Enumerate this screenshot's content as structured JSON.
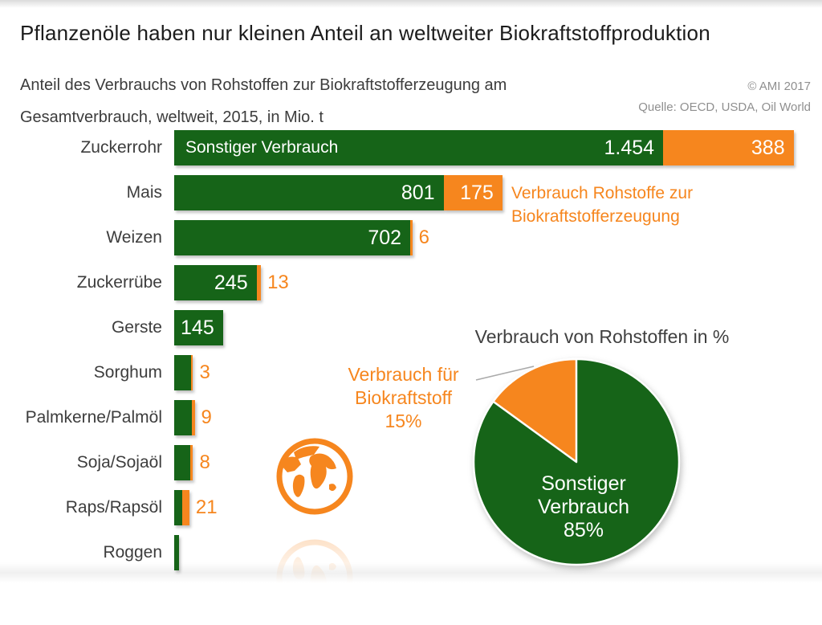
{
  "header": {
    "title": "Pflanzenöle haben nur kleinen Anteil an weltweiter Biokraftstoffproduktion",
    "subtitle_line1": "Anteil des Verbrauchs von Rohstoffen zur Biokraftstofferzeugung am",
    "subtitle_line2": "Gesamtverbrauch, weltweit, 2015, in Mio. t",
    "copyright": "© AMI 2017",
    "source": "Quelle: OECD, USDA, Oil World"
  },
  "colors": {
    "green": "#166418",
    "orange": "#F6861E",
    "title_text": "#1c1c1c",
    "subtitle_text": "#3c3c3c",
    "source_text": "#8f8f8f",
    "leader_line": "#aaaaaa"
  },
  "chart_data": [
    {
      "type": "bar",
      "orientation": "horizontal",
      "unit": "Mio. t",
      "categories": [
        "Zuckerrohr",
        "Mais",
        "Weizen",
        "Zuckerrübe",
        "Gerste",
        "Sorghum",
        "Palmkerne/Palmöl",
        "Soja/Sojaöl",
        "Raps/Rapsöl",
        "Roggen"
      ],
      "series": [
        {
          "name": "Sonstiger Verbrauch",
          "color": "#166418",
          "values": [
            1454,
            801,
            702,
            245,
            145,
            50,
            52,
            48,
            24,
            15
          ],
          "value_labels": [
            "1.454",
            "801",
            "702",
            "245",
            "145",
            "",
            "",
            "",
            "",
            ""
          ]
        },
        {
          "name": "Verbrauch Rohstoffe zur Biokraftstofferzeugung",
          "color": "#F6861E",
          "values": [
            388,
            175,
            6,
            13,
            0,
            3,
            9,
            8,
            21,
            0
          ],
          "value_labels": [
            "388",
            "175",
            "6",
            "13",
            "",
            "3",
            "9",
            "8",
            "21",
            ""
          ]
        }
      ]
    },
    {
      "type": "pie",
      "title": "Verbrauch von Rohstoffen in %",
      "slices": [
        {
          "label": "Sonstiger Verbrauch",
          "pct": 85,
          "pct_label": "85%",
          "color": "#166418"
        },
        {
          "label": "Verbrauch für Biokraftstoff",
          "pct": 15,
          "pct_label": "15%",
          "color": "#F6861E"
        }
      ]
    }
  ]
}
